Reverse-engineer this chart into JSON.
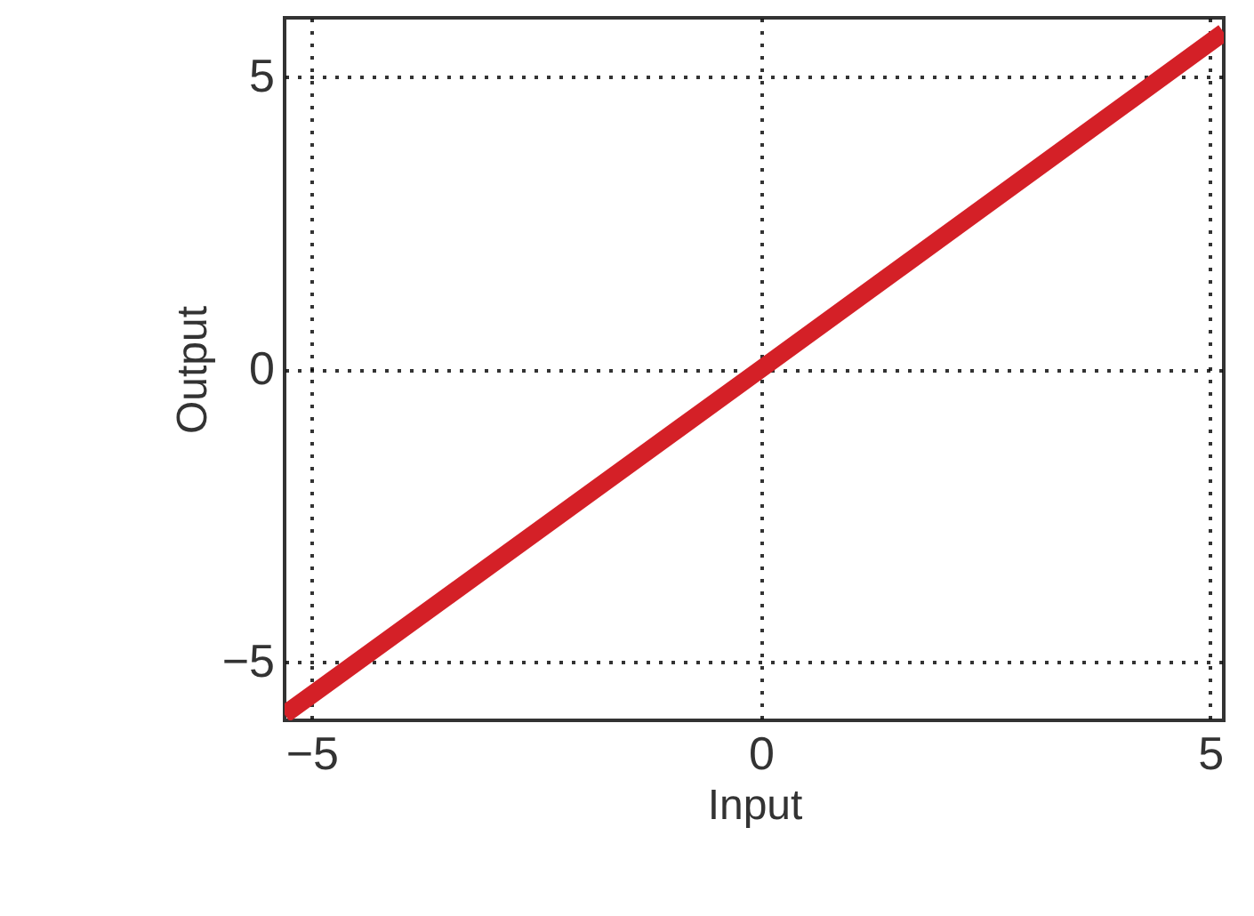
{
  "chart_data": {
    "type": "line",
    "xlabel": "Input",
    "ylabel": "Output",
    "x": [
      -5.3,
      0,
      5.15
    ],
    "series": [
      {
        "color": "#d42027",
        "values": [
          -5.9,
          0,
          5.75
        ]
      }
    ],
    "xlim": [
      -5.3,
      5.15
    ],
    "ylim": [
      -6,
      6
    ],
    "xticks": [
      -5,
      0,
      5
    ],
    "yticks": [
      -5,
      0,
      5
    ],
    "grid": true,
    "line_style": "solid"
  }
}
